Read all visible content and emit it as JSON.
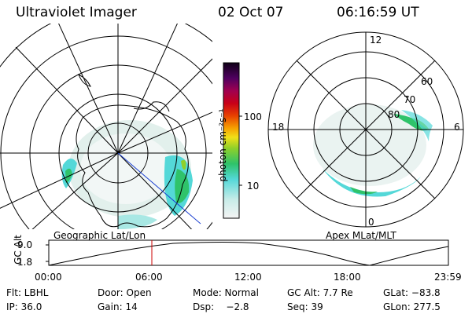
{
  "header": {
    "title": "Ultraviolet Imager",
    "date": "02 Oct 07",
    "time": "06:16:59 UT"
  },
  "left_panel": {
    "caption": "Geographic Lat/Lon"
  },
  "right_panel": {
    "caption": "Apex MLat/MLT",
    "mlt_labels": {
      "top": "12",
      "left": "18",
      "right": "6",
      "bottom": "0"
    },
    "lat_labels": [
      "80",
      "70",
      "60"
    ]
  },
  "colorbar": {
    "unit_label": "photon cm⁻²s⁻¹",
    "ticks": [
      "100",
      "10"
    ]
  },
  "altitude_plot": {
    "ylabel": "GC Alt",
    "y_ticks": [
      "9.0",
      "1.8"
    ],
    "x_ticks": [
      "00:00",
      "06:00",
      "12:00",
      "18:00",
      "23:59"
    ],
    "marker_time": "06:16:59",
    "marker_color": "#cc0000"
  },
  "info": {
    "row1": {
      "filter": "Flt: LBHL",
      "door": "Door: Open",
      "mode": "Mode: Normal",
      "gc_alt": "GC Alt: 7.7 Re",
      "glat": "GLat: −83.8"
    },
    "row2": {
      "ip": "IP: 36.0",
      "gain": "Gain: 14",
      "dsp": "Dsp:    −2.8",
      "seq": "Seq: 39",
      "glon": "GLon: 277.5"
    }
  },
  "colors": {
    "aurora_low": "#d8ece8",
    "aurora_mid": "#54d8d8",
    "aurora_high": "#2fc36a",
    "aurora_peak": "#8fd02a"
  }
}
